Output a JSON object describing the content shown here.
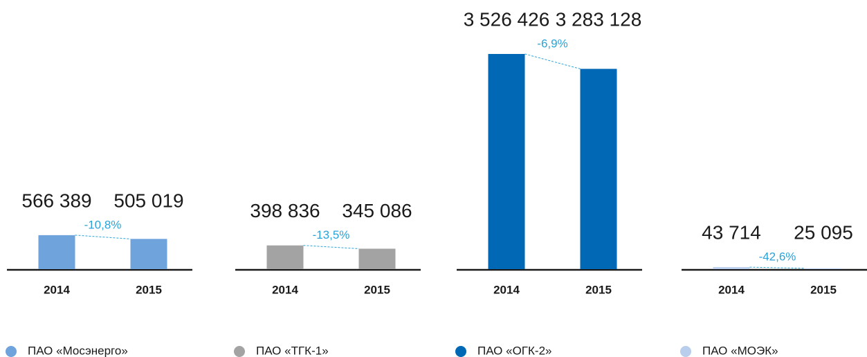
{
  "chart_data": [
    {
      "type": "bar",
      "name": "ПАО «Мосэнерго»",
      "color": "#6fa3dc",
      "categories": [
        "2014",
        "2015"
      ],
      "values": [
        566389,
        505019
      ],
      "value_labels": [
        "566 389",
        "505 019"
      ],
      "change": "-10,8%"
    },
    {
      "type": "bar",
      "name": "ПАО «ТГК-1»",
      "color": "#a3a3a3",
      "categories": [
        "2014",
        "2015"
      ],
      "values": [
        398836,
        345086
      ],
      "value_labels": [
        "398 836",
        "345 086"
      ],
      "change": "-13,5%"
    },
    {
      "type": "bar",
      "name": "ПАО «ОГК-2»",
      "color": "#0068b4",
      "categories": [
        "2014",
        "2015"
      ],
      "values": [
        3526426,
        3283128
      ],
      "value_labels": [
        "3 526 426",
        "3 283 128"
      ],
      "change": "-6,9%"
    },
    {
      "type": "bar",
      "name": "ПАО «МОЭК»",
      "color": "#b9cdec",
      "categories": [
        "2014",
        "2015"
      ],
      "values": [
        43714,
        25095
      ],
      "value_labels": [
        "43 714",
        "25 095"
      ],
      "change": "-42,6%"
    }
  ]
}
